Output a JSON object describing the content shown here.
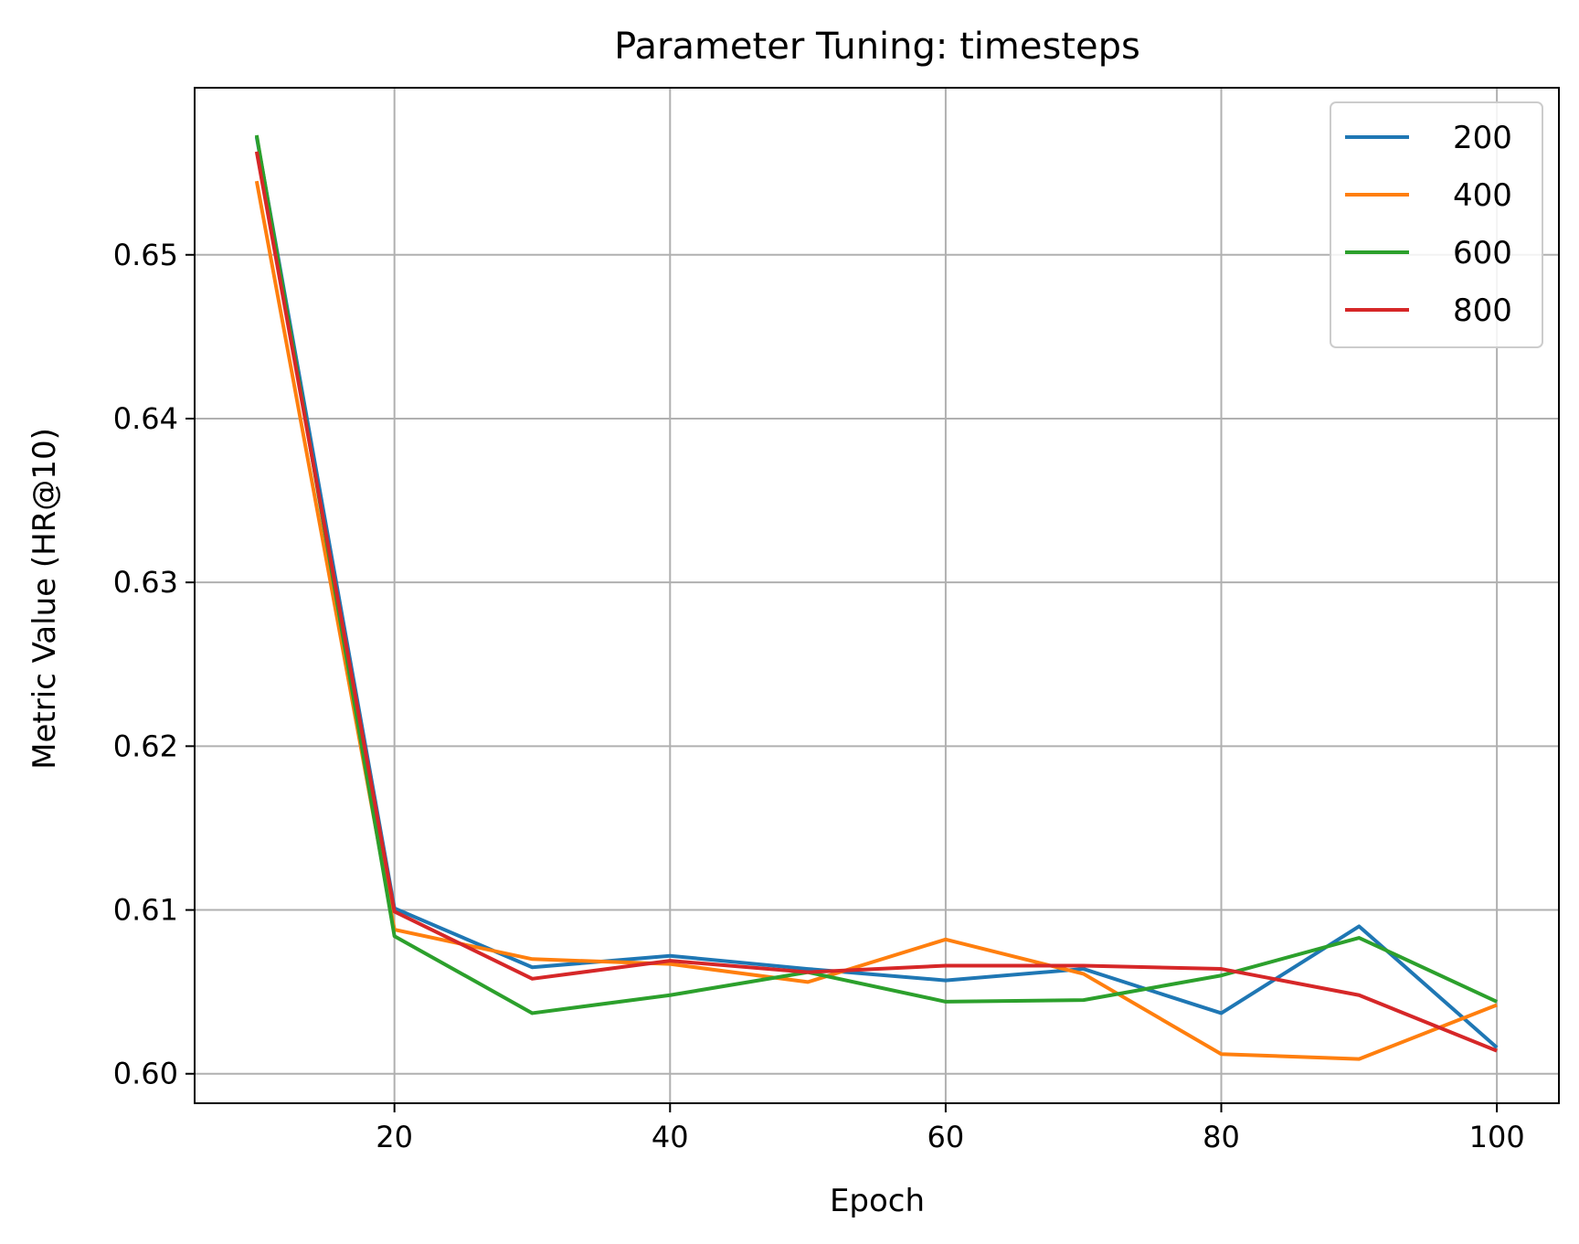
{
  "chart_data": {
    "type": "line",
    "title": "Parameter Tuning: timesteps",
    "xlabel": "Epoch",
    "ylabel": "Metric Value (HR@10)",
    "x": [
      10,
      20,
      30,
      40,
      50,
      60,
      70,
      80,
      90,
      100
    ],
    "xlim": [
      5.5,
      104.5
    ],
    "ylim": [
      0.5982,
      0.6602
    ],
    "xticks": [
      20,
      40,
      60,
      80,
      100
    ],
    "yticks": [
      0.6,
      0.61,
      0.62,
      0.63,
      0.64,
      0.65
    ],
    "xtick_labels": [
      "20",
      "40",
      "60",
      "80",
      "100"
    ],
    "ytick_labels": [
      "0.60",
      "0.61",
      "0.62",
      "0.63",
      "0.64",
      "0.65"
    ],
    "grid": true,
    "legend_position": "top-right",
    "series": [
      {
        "name": "200",
        "color": "#1f77b4",
        "values": [
          0.6572,
          0.6101,
          0.6065,
          0.6072,
          0.6064,
          0.6057,
          0.6064,
          0.6037,
          0.609,
          0.6016
        ]
      },
      {
        "name": "400",
        "color": "#ff7f0e",
        "values": [
          0.6545,
          0.6088,
          0.607,
          0.6067,
          0.6056,
          0.6082,
          0.6061,
          0.6012,
          0.6009,
          0.6042
        ]
      },
      {
        "name": "600",
        "color": "#2ca02c",
        "values": [
          0.6573,
          0.6084,
          0.6037,
          0.6048,
          0.6062,
          0.6044,
          0.6045,
          0.606,
          0.6083,
          0.6044
        ]
      },
      {
        "name": "800",
        "color": "#d62728",
        "values": [
          0.6563,
          0.6099,
          0.6058,
          0.6069,
          0.6062,
          0.6066,
          0.6066,
          0.6064,
          0.6048,
          0.6014
        ]
      }
    ]
  }
}
